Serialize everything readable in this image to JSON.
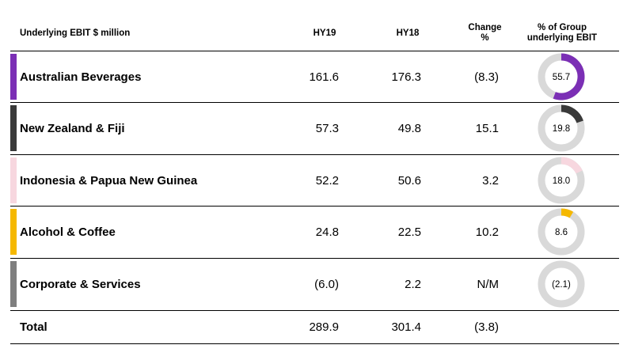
{
  "header": {
    "title": "Underlying EBIT $ million",
    "col_hy19": "HY19",
    "col_hy18": "HY18",
    "col_change_line1": "Change",
    "col_change_line2": "%",
    "col_share_line1": "% of Group",
    "col_share_line2": "underlying EBIT"
  },
  "rows": [
    {
      "name": "Australian Beverages",
      "hy19": "161.6",
      "hy18": "176.3",
      "change": "(8.3)",
      "share_label": "55.7",
      "share_value": 55.7,
      "color": "#7B2FB5"
    },
    {
      "name": "New Zealand & Fiji",
      "hy19": "57.3",
      "hy18": "49.8",
      "change": "15.1",
      "share_label": "19.8",
      "share_value": 19.8,
      "color": "#3A3A3A"
    },
    {
      "name": "Indonesia & Papua New Guinea",
      "hy19": "52.2",
      "hy18": "50.6",
      "change": "3.2",
      "share_label": "18.0",
      "share_value": 18.0,
      "color": "#F7D7DF"
    },
    {
      "name": "Alcohol & Coffee",
      "hy19": "24.8",
      "hy18": "22.5",
      "change": "10.2",
      "share_label": "8.6",
      "share_value": 8.6,
      "color": "#F5B800"
    },
    {
      "name": "Corporate & Services",
      "hy19": "(6.0)",
      "hy18": "2.2",
      "change": "N/M",
      "share_label": "(2.1)",
      "share_value": 0,
      "color": "#7F7F7F"
    }
  ],
  "total": {
    "name": "Total",
    "hy19": "289.9",
    "hy18": "301.4",
    "change": "(3.8)"
  },
  "donut_track_color": "#D9D9D9"
}
